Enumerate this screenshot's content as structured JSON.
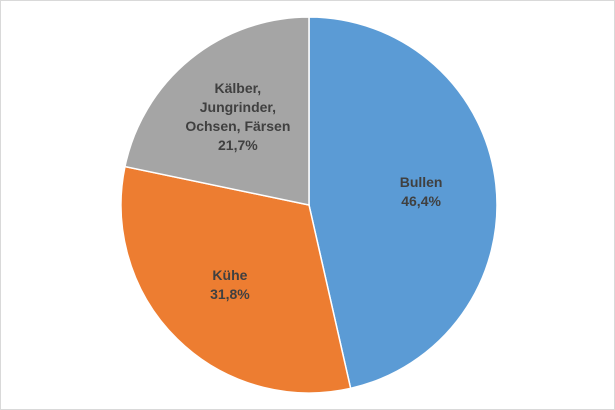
{
  "chart_data": {
    "type": "pie",
    "categories": [
      "Bullen",
      "Kühe",
      "Kälber, Jungrinder, Ochsen, Färsen"
    ],
    "values": [
      46.4,
      31.8,
      21.7
    ],
    "value_labels": [
      "46,4%",
      "31,8%",
      "21,7%"
    ],
    "colors": [
      "#5b9bd5",
      "#ed7d31",
      "#a5a5a5"
    ]
  }
}
